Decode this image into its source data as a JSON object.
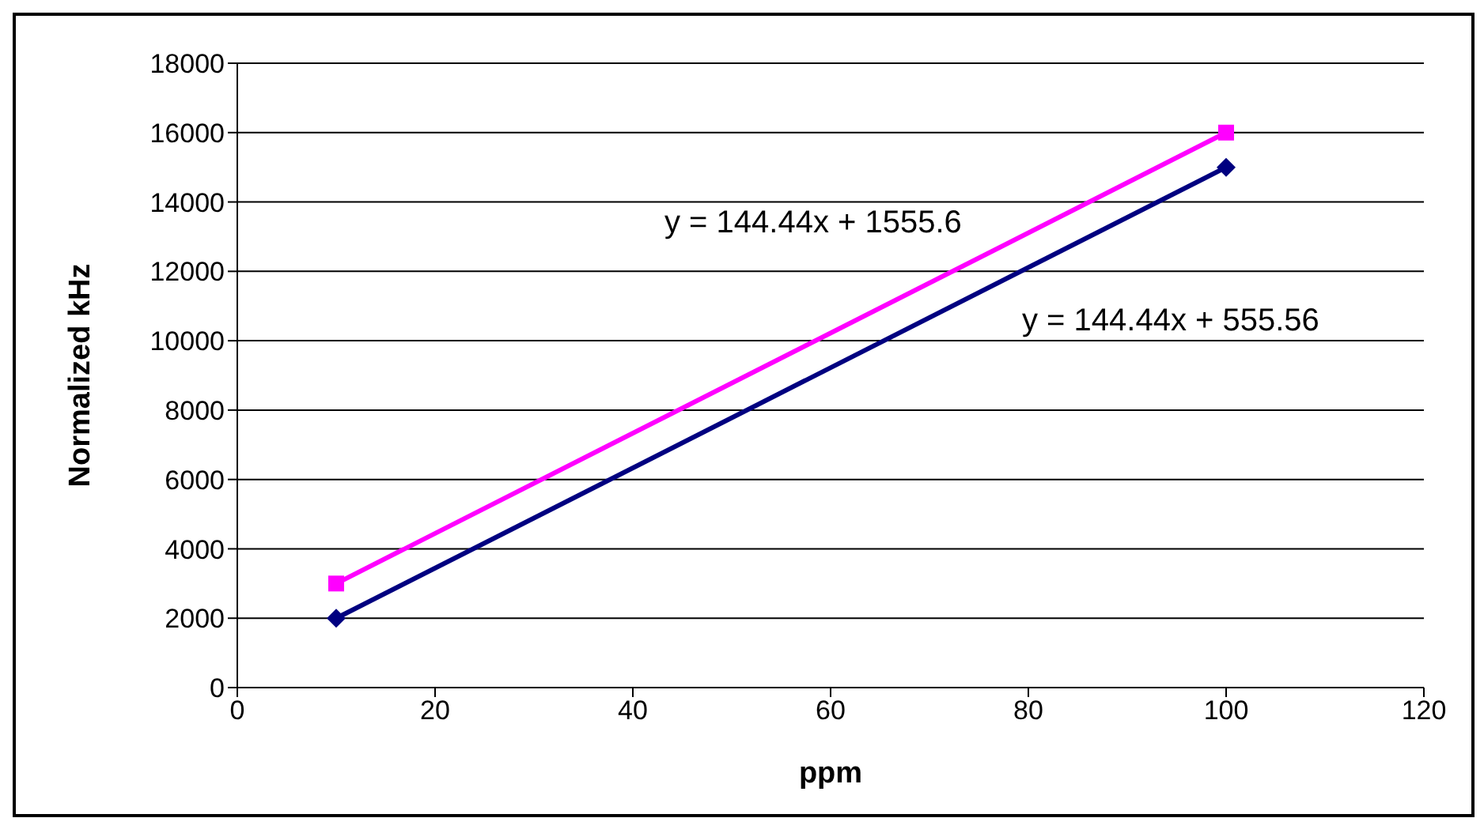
{
  "chart_data": {
    "type": "line",
    "xlabel": "ppm",
    "ylabel": "Normalized kHz",
    "series": [
      {
        "color": "#ff00ff",
        "values": [
          3000,
          16000
        ],
        "marker": "square"
      },
      {
        "color": "#000080",
        "values": [
          2000,
          15000
        ],
        "marker": "diamond"
      }
    ],
    "x": [
      10,
      100
    ],
    "xlim": [
      0,
      120
    ],
    "xticks": [
      0,
      20,
      40,
      60,
      80,
      100,
      120
    ],
    "ylim": [
      0,
      18000
    ],
    "yticks": [
      0,
      2000,
      4000,
      6000,
      8000,
      10000,
      12000,
      14000,
      16000,
      18000
    ],
    "grid": "y",
    "legend": false,
    "annotations": [
      "y = 144.44x + 1555.6",
      "y = 144.44x + 555.56"
    ]
  }
}
